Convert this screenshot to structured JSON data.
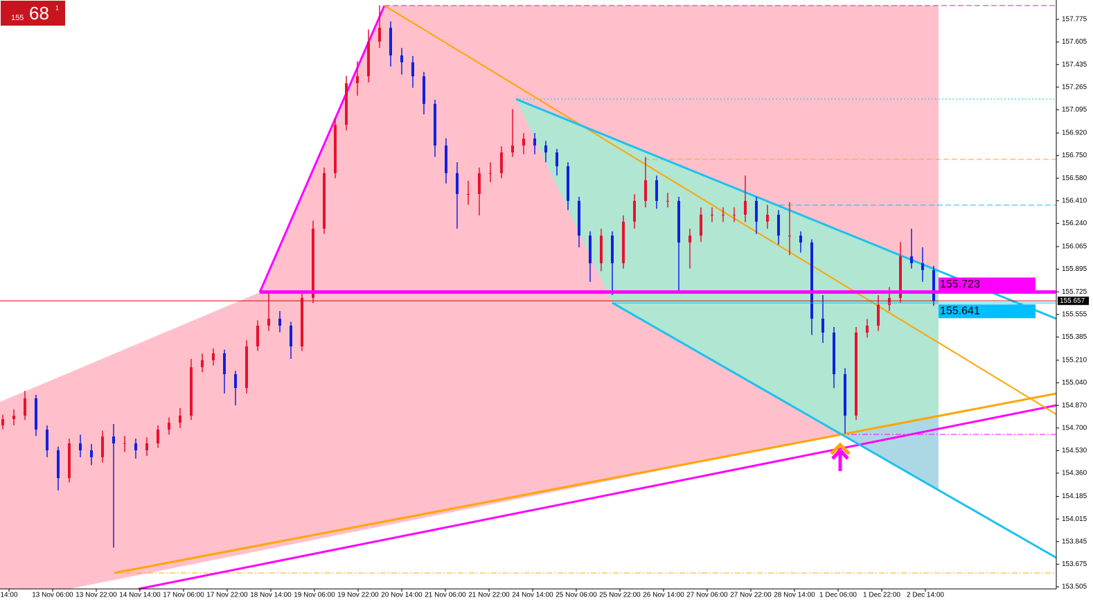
{
  "chart_data": {
    "type": "candlestick",
    "badge": {
      "small": "155",
      "main": "68",
      "sup": "1"
    },
    "up_color": "#e8112d",
    "down_color": "#1020e0",
    "ylim": [
      153.489,
      157.921
    ],
    "yticks": [
      157.775,
      157.605,
      157.435,
      157.265,
      157.095,
      {
        "value": 156.92,
        "label": "156.920"
      },
      {
        "value": 156.75,
        "label": "156.750"
      },
      {
        "value": 156.58,
        "label": "156.580"
      },
      {
        "value": 156.41,
        "label": "156.410"
      },
      {
        "value": 156.24,
        "label": "156.240"
      },
      156.065,
      155.895,
      155.725,
      155.555,
      155.385,
      {
        "value": 155.21,
        "label": "155.210"
      },
      {
        "value": 155.04,
        "label": "155.040"
      },
      {
        "value": 154.87,
        "label": "154.870"
      },
      {
        "value": 154.7,
        "label": "154.700"
      },
      {
        "value": 154.53,
        "label": "154.530"
      },
      {
        "value": 154.36,
        "label": "154.360"
      },
      154.185,
      154.015,
      153.845,
      153.675,
      153.505
    ],
    "x_labels": [
      "14:00",
      "13 Nov 06:00",
      "13 Nov 22:00",
      "14 Nov 14:00",
      "17 Nov 06:00",
      "17 Nov 22:00",
      "18 Nov 14:00",
      "19 Nov 06:00",
      "19 Nov 22:00",
      "20 Nov 14:00",
      "21 Nov 06:00",
      "21 Nov 22:00",
      "24 Nov 14:00",
      "25 Nov 06:00",
      "25 Nov 22:00",
      "26 Nov 14:00",
      "27 Nov 06:00",
      "27 Nov 22:00",
      "28 Nov 14:00",
      "1 Dec 06:00",
      "1 Dec 22:00",
      "2 Dec 14:00"
    ],
    "levels": [
      {
        "value": 155.723,
        "color": "#ff00ff"
      },
      {
        "value": 155.641,
        "color": "#00bfff"
      }
    ],
    "current_price": 155.657,
    "candles": [
      [
        154.72,
        154.8,
        154.69,
        154.767
      ],
      [
        154.767,
        154.84,
        154.72,
        154.793
      ],
      [
        154.793,
        154.98,
        154.76,
        154.923
      ],
      [
        154.923,
        154.95,
        154.64,
        154.688
      ],
      [
        154.688,
        154.72,
        154.48,
        154.532
      ],
      [
        154.532,
        154.56,
        154.23,
        154.323
      ],
      [
        154.323,
        154.62,
        154.29,
        154.584
      ],
      [
        154.584,
        154.65,
        154.48,
        154.532
      ],
      [
        154.532,
        154.58,
        154.42,
        154.48
      ],
      [
        154.48,
        154.68,
        154.44,
        154.636
      ],
      [
        154.636,
        154.73,
        153.8,
        154.584
      ],
      [
        154.584,
        154.64,
        154.52,
        154.584
      ],
      [
        154.584,
        154.62,
        154.47,
        154.532
      ],
      [
        154.532,
        154.63,
        154.49,
        154.584
      ],
      [
        154.584,
        154.72,
        154.55,
        154.688
      ],
      [
        154.688,
        154.78,
        154.65,
        154.74
      ],
      [
        154.74,
        154.85,
        154.7,
        154.793
      ],
      [
        154.793,
        155.22,
        154.76,
        155.158
      ],
      [
        155.158,
        155.26,
        155.12,
        155.21
      ],
      [
        155.21,
        155.3,
        155.17,
        155.262
      ],
      [
        155.262,
        155.29,
        154.96,
        155.105
      ],
      [
        155.105,
        155.13,
        154.87,
        155.001
      ],
      [
        155.001,
        155.36,
        154.96,
        155.314
      ],
      [
        155.314,
        155.51,
        155.28,
        155.47
      ],
      [
        155.47,
        155.72,
        155.43,
        155.523
      ],
      [
        155.523,
        155.58,
        155.42,
        155.47
      ],
      [
        155.47,
        155.5,
        155.22,
        155.314
      ],
      [
        155.314,
        155.72,
        155.28,
        155.679
      ],
      [
        155.679,
        156.26,
        155.64,
        156.2
      ],
      [
        156.2,
        156.66,
        156.16,
        156.618
      ],
      [
        156.618,
        157.03,
        156.58,
        156.982
      ],
      [
        156.982,
        157.35,
        156.94,
        157.295
      ],
      [
        157.295,
        157.46,
        157.2,
        157.347
      ],
      [
        157.347,
        157.7,
        157.3,
        157.608
      ],
      [
        157.608,
        157.88,
        157.56,
        157.712
      ],
      [
        157.712,
        157.76,
        157.42,
        157.504
      ],
      [
        157.504,
        157.56,
        157.36,
        157.452
      ],
      [
        157.452,
        157.5,
        157.26,
        157.347
      ],
      [
        157.347,
        157.38,
        157.06,
        157.139
      ],
      [
        157.139,
        157.17,
        156.74,
        156.826
      ],
      [
        156.826,
        156.88,
        156.54,
        156.618
      ],
      [
        156.618,
        156.7,
        156.2,
        156.461
      ],
      [
        156.461,
        156.56,
        156.38,
        156.461
      ],
      [
        156.461,
        156.66,
        156.3,
        156.618
      ],
      [
        156.618,
        156.7,
        156.55,
        156.618
      ],
      [
        156.618,
        156.82,
        156.58,
        156.774
      ],
      [
        156.774,
        157.1,
        156.74,
        156.826
      ],
      [
        156.826,
        156.92,
        156.76,
        156.878
      ],
      [
        156.878,
        156.92,
        156.76,
        156.826
      ],
      [
        156.826,
        156.86,
        156.7,
        156.774
      ],
      [
        156.774,
        156.8,
        156.6,
        156.67
      ],
      [
        156.67,
        156.7,
        156.34,
        156.409
      ],
      [
        156.409,
        156.44,
        156.06,
        156.148
      ],
      [
        156.148,
        156.18,
        155.8,
        155.94
      ],
      [
        155.94,
        156.2,
        155.88,
        156.148
      ],
      [
        156.148,
        156.18,
        155.7,
        155.94
      ],
      [
        155.94,
        156.3,
        155.9,
        156.253
      ],
      [
        156.253,
        156.46,
        156.2,
        156.409
      ],
      [
        156.409,
        156.74,
        156.36,
        156.565
      ],
      [
        156.565,
        156.6,
        156.35,
        156.409
      ],
      [
        156.409,
        156.47,
        156.36,
        156.409
      ],
      [
        156.409,
        156.44,
        155.72,
        156.096
      ],
      [
        156.096,
        156.2,
        155.9,
        156.148
      ],
      [
        156.148,
        156.36,
        156.1,
        156.305
      ],
      [
        156.305,
        156.36,
        156.25,
        156.305
      ],
      [
        156.305,
        156.36,
        156.25,
        156.305
      ],
      [
        156.305,
        156.36,
        156.25,
        156.305
      ],
      [
        156.305,
        156.6,
        156.25,
        156.409
      ],
      [
        156.409,
        156.44,
        156.16,
        156.253
      ],
      [
        156.253,
        156.38,
        156.2,
        156.305
      ],
      [
        156.305,
        156.34,
        156.08,
        156.148
      ],
      [
        156.148,
        156.4,
        156.0,
        156.148
      ],
      [
        156.148,
        156.18,
        156.02,
        156.096
      ],
      [
        156.096,
        156.12,
        155.4,
        155.523
      ],
      [
        155.523,
        155.7,
        155.34,
        155.418
      ],
      [
        155.418,
        155.46,
        155.0,
        155.105
      ],
      [
        155.105,
        155.15,
        154.66,
        154.793
      ],
      [
        154.793,
        155.46,
        154.76,
        155.418
      ],
      [
        155.418,
        155.52,
        155.38,
        155.47
      ],
      [
        155.47,
        155.7,
        155.43,
        155.627
      ],
      [
        155.627,
        155.76,
        155.58,
        155.679
      ],
      [
        155.679,
        156.1,
        155.64,
        155.992
      ],
      [
        155.992,
        156.2,
        155.9,
        155.94
      ],
      [
        155.94,
        156.06,
        155.8,
        155.888
      ],
      [
        155.888,
        155.92,
        155.62,
        155.657
      ]
    ]
  }
}
